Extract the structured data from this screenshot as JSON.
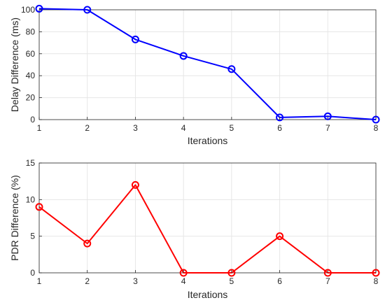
{
  "chart_data": [
    {
      "type": "line",
      "title": "",
      "xlabel": "Iterations",
      "ylabel": "Delay Difference (ms)",
      "x": [
        1,
        2,
        3,
        4,
        5,
        6,
        7,
        8
      ],
      "xlim": [
        1,
        8
      ],
      "ylim": [
        0,
        100
      ],
      "xticks": [
        "1",
        "2",
        "3",
        "4",
        "5",
        "6",
        "7",
        "8"
      ],
      "yticks": [
        "0",
        "20",
        "40",
        "60",
        "80",
        "100"
      ],
      "grid": true,
      "series": [
        {
          "values": [
            101,
            100,
            73,
            58,
            46,
            2,
            3,
            0
          ],
          "color": "#0000ff",
          "marker": "circle"
        }
      ]
    },
    {
      "type": "line",
      "title": "",
      "xlabel": "Iterations",
      "ylabel": "PDR Difference (%)",
      "x": [
        1,
        2,
        3,
        4,
        5,
        6,
        7,
        8
      ],
      "xlim": [
        1,
        8
      ],
      "ylim": [
        0,
        15
      ],
      "xticks": [
        "1",
        "2",
        "3",
        "4",
        "5",
        "6",
        "7",
        "8"
      ],
      "yticks": [
        "0",
        "5",
        "10",
        "15"
      ],
      "grid": true,
      "series": [
        {
          "values": [
            9,
            4,
            12,
            0,
            0,
            5,
            0,
            0
          ],
          "color": "#ff0000",
          "marker": "circle"
        }
      ]
    }
  ]
}
